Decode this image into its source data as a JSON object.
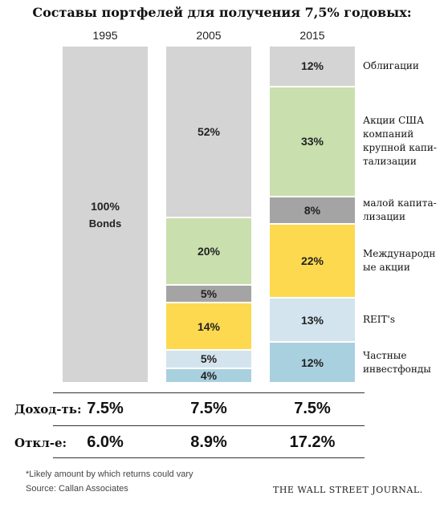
{
  "chart_data": {
    "type": "bar",
    "stacked": true,
    "title": "Составы портфелей для получения 7,5% годовых:",
    "categories": [
      "1995",
      "2005",
      "2015"
    ],
    "series": [
      {
        "name": "Облигации",
        "color": "#d4d4d4",
        "values": [
          100,
          52,
          12
        ],
        "labels": [
          "100%",
          "52%",
          "12%"
        ],
        "sublabels": [
          "Bonds",
          "",
          ""
        ]
      },
      {
        "name": "Акции США компаний крупной капитализации",
        "color": "#c9dfae",
        "values": [
          0,
          20,
          33
        ],
        "labels": [
          "",
          "20%",
          "33%"
        ]
      },
      {
        "name": "малой капитализации",
        "color": "#a4a4a4",
        "values": [
          0,
          5,
          8
        ],
        "labels": [
          "",
          "5%",
          "8%"
        ]
      },
      {
        "name": "Международные акции",
        "color": "#fcd94f",
        "values": [
          0,
          14,
          22
        ],
        "labels": [
          "",
          "14%",
          "22%"
        ]
      },
      {
        "name": "REIT's",
        "color": "#d3e4ee",
        "values": [
          0,
          5,
          13
        ],
        "labels": [
          "",
          "5%",
          "13%"
        ]
      },
      {
        "name": "Частные инвестфонды",
        "color": "#a9d0df",
        "values": [
          0,
          4,
          12
        ],
        "labels": [
          "",
          "4%",
          "12%"
        ]
      }
    ],
    "legend_labels": [
      "Облигации",
      "Акции США\nкомпаний\nкрупной капи-\nтализации",
      "малой капита-\nлизации",
      "Международн\nые акции",
      "REIT's",
      "Частные\nинвестфонды"
    ],
    "rows": [
      {
        "label": "Доход-ть:",
        "values": [
          "7.5%",
          "7.5%",
          "7.5%"
        ]
      },
      {
        "label": "Откл-е:",
        "values": [
          "6.0%",
          "8.9%",
          "17.2%"
        ]
      }
    ],
    "footnote": "*Likely amount by which returns could vary",
    "source": "Source: Callan Associates",
    "publisher": "THE WALL STREET JOURNAL."
  }
}
